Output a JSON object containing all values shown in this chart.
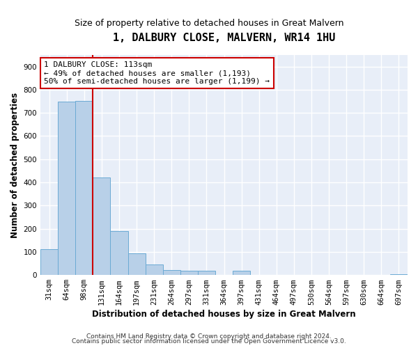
{
  "title": "1, DALBURY CLOSE, MALVERN, WR14 1HU",
  "subtitle": "Size of property relative to detached houses in Great Malvern",
  "xlabel": "Distribution of detached houses by size in Great Malvern",
  "ylabel": "Number of detached properties",
  "bar_labels": [
    "31sqm",
    "64sqm",
    "98sqm",
    "131sqm",
    "164sqm",
    "197sqm",
    "231sqm",
    "264sqm",
    "297sqm",
    "331sqm",
    "364sqm",
    "397sqm",
    "431sqm",
    "464sqm",
    "497sqm",
    "530sqm",
    "564sqm",
    "597sqm",
    "630sqm",
    "664sqm",
    "697sqm"
  ],
  "bar_values": [
    113,
    748,
    752,
    420,
    190,
    93,
    46,
    22,
    18,
    18,
    0,
    18,
    0,
    0,
    0,
    0,
    0,
    0,
    0,
    0,
    5
  ],
  "bar_color": "#b8d0e8",
  "bar_edge_color": "#6aaad4",
  "vline_x": 2.5,
  "vline_color": "#cc0000",
  "annotation_text": "1 DALBURY CLOSE: 113sqm\n← 49% of detached houses are smaller (1,193)\n50% of semi-detached houses are larger (1,199) →",
  "annotation_box_facecolor": "#ffffff",
  "annotation_box_edgecolor": "#cc0000",
  "ylim": [
    0,
    950
  ],
  "yticks": [
    0,
    100,
    200,
    300,
    400,
    500,
    600,
    700,
    800,
    900
  ],
  "footer_line1": "Contains HM Land Registry data © Crown copyright and database right 2024.",
  "footer_line2": "Contains public sector information licensed under the Open Government Licence v3.0.",
  "background_color": "#ffffff",
  "plot_bg_color": "#e8eef8",
  "grid_color": "#ffffff",
  "title_fontsize": 11,
  "subtitle_fontsize": 9,
  "axis_label_fontsize": 8.5,
  "tick_fontsize": 7.5,
  "annotation_fontsize": 8,
  "footer_fontsize": 6.5
}
